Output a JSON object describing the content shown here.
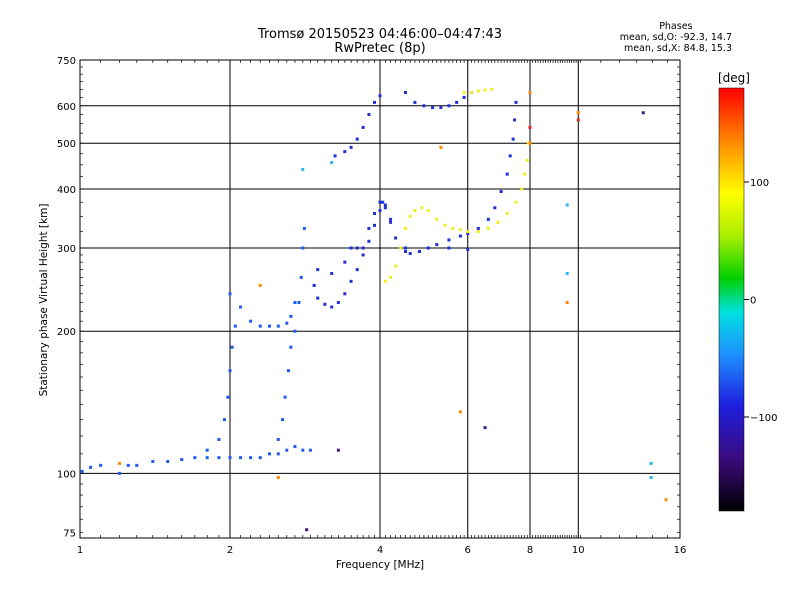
{
  "chart_data": {
    "type": "scatter",
    "title": "Tromsø 20150523 04:46:00–04:47:43",
    "subtitle": "RwPretec (8p)",
    "xlabel": "Frequency [MHz]",
    "ylabel": "Stationary phase Virtual Height [km]",
    "x_scale": "log",
    "y_scale": "log",
    "xlim": [
      1,
      16
    ],
    "ylim": [
      73,
      750
    ],
    "x_ticks": [
      1,
      2,
      4,
      6,
      8,
      10,
      16
    ],
    "y_ticks": [
      75,
      100,
      200,
      300,
      400,
      500,
      600,
      750
    ],
    "grid": true,
    "phase_stats": {
      "header": "Phases",
      "line_o": "mean, sd,O: -92.3, 14.7",
      "line_x": "mean, sd,X:  84.8, 15.3"
    },
    "colorbar": {
      "unit": "[deg]",
      "range": [
        -180,
        180
      ],
      "tick_values": [
        100,
        0,
        -100
      ],
      "tick_labels": [
        "100",
        "0",
        "−100"
      ]
    },
    "series": [
      {
        "color": "#1e5cf0",
        "points": [
          [
            1.01,
            101
          ],
          [
            1.05,
            103
          ],
          [
            1.1,
            104
          ],
          [
            1.2,
            100
          ],
          [
            1.25,
            104
          ],
          [
            1.3,
            104
          ],
          [
            1.4,
            106
          ],
          [
            1.5,
            106
          ],
          [
            1.6,
            107
          ],
          [
            1.7,
            108
          ],
          [
            1.8,
            108
          ],
          [
            1.9,
            108
          ],
          [
            2.0,
            108
          ],
          [
            2.1,
            108
          ],
          [
            2.2,
            108
          ],
          [
            2.3,
            108
          ],
          [
            2.4,
            110
          ],
          [
            2.5,
            110
          ],
          [
            2.5,
            118
          ],
          [
            2.55,
            130
          ],
          [
            2.58,
            145
          ],
          [
            2.62,
            165
          ],
          [
            2.65,
            185
          ],
          [
            2.7,
            200
          ],
          [
            2.75,
            230
          ],
          [
            2.78,
            260
          ],
          [
            2.8,
            300
          ],
          [
            2.82,
            330
          ],
          [
            2.6,
            112
          ],
          [
            2.7,
            114
          ],
          [
            2.8,
            112
          ],
          [
            2.9,
            112
          ],
          [
            1.8,
            112
          ],
          [
            1.9,
            118
          ],
          [
            1.95,
            130
          ],
          [
            1.98,
            145
          ],
          [
            2.0,
            165
          ],
          [
            2.02,
            185
          ],
          [
            2.05,
            205
          ],
          [
            2.0,
            240
          ],
          [
            2.1,
            225
          ],
          [
            2.2,
            210
          ],
          [
            2.3,
            205
          ],
          [
            2.4,
            205
          ],
          [
            2.5,
            205
          ],
          [
            2.6,
            208
          ],
          [
            2.65,
            215
          ],
          [
            2.7,
            230
          ]
        ]
      },
      {
        "color": "#1f2fd4",
        "points": [
          [
            2.95,
            250
          ],
          [
            3.0,
            235
          ],
          [
            3.1,
            228
          ],
          [
            3.2,
            225
          ],
          [
            3.3,
            230
          ],
          [
            3.4,
            240
          ],
          [
            3.5,
            255
          ],
          [
            3.6,
            270
          ],
          [
            3.7,
            290
          ],
          [
            3.8,
            310
          ],
          [
            3.9,
            335
          ],
          [
            4.0,
            360
          ],
          [
            4.05,
            375
          ],
          [
            4.1,
            370
          ],
          [
            4.2,
            345
          ],
          [
            4.3,
            315
          ],
          [
            4.4,
            300
          ],
          [
            4.5,
            295
          ],
          [
            4.6,
            292
          ],
          [
            4.8,
            295
          ],
          [
            5.0,
            300
          ],
          [
            5.2,
            305
          ],
          [
            5.5,
            312
          ],
          [
            5.8,
            318
          ],
          [
            6.0,
            322
          ],
          [
            6.3,
            330
          ],
          [
            6.6,
            345
          ],
          [
            6.8,
            365
          ],
          [
            7.0,
            395
          ],
          [
            7.2,
            430
          ],
          [
            7.3,
            470
          ],
          [
            7.4,
            510
          ],
          [
            7.45,
            560
          ],
          [
            7.5,
            610
          ],
          [
            3.0,
            270
          ],
          [
            3.2,
            265
          ],
          [
            3.4,
            280
          ],
          [
            3.6,
            300
          ],
          [
            3.8,
            330
          ],
          [
            3.9,
            355
          ],
          [
            4.0,
            375
          ],
          [
            4.1,
            365
          ],
          [
            4.2,
            340
          ],
          [
            3.5,
            300
          ],
          [
            3.7,
            300
          ],
          [
            4.5,
            300
          ],
          [
            5.0,
            300
          ],
          [
            5.5,
            300
          ],
          [
            6.0,
            298
          ],
          [
            3.25,
            470
          ],
          [
            3.4,
            480
          ],
          [
            3.5,
            490
          ],
          [
            3.6,
            510
          ],
          [
            3.7,
            540
          ],
          [
            3.8,
            575
          ],
          [
            3.9,
            610
          ],
          [
            4.0,
            630
          ],
          [
            4.5,
            640
          ],
          [
            4.7,
            610
          ],
          [
            4.9,
            600
          ],
          [
            5.1,
            595
          ],
          [
            5.3,
            595
          ],
          [
            5.5,
            600
          ],
          [
            5.7,
            610
          ],
          [
            5.9,
            625
          ],
          [
            6.1,
            640
          ]
        ]
      },
      {
        "color": "#f0f020",
        "points": [
          [
            4.1,
            255
          ],
          [
            4.2,
            260
          ],
          [
            4.3,
            275
          ],
          [
            4.4,
            300
          ],
          [
            4.5,
            330
          ],
          [
            4.6,
            350
          ],
          [
            4.7,
            360
          ],
          [
            4.85,
            365
          ],
          [
            5.0,
            360
          ],
          [
            5.2,
            345
          ],
          [
            5.4,
            335
          ],
          [
            5.6,
            330
          ],
          [
            5.8,
            328
          ],
          [
            6.0,
            325
          ],
          [
            6.3,
            325
          ],
          [
            6.6,
            330
          ],
          [
            6.9,
            340
          ],
          [
            7.2,
            355
          ],
          [
            7.5,
            375
          ],
          [
            7.7,
            400
          ],
          [
            7.8,
            430
          ],
          [
            7.9,
            460
          ],
          [
            7.95,
            500
          ],
          [
            5.9,
            640
          ],
          [
            6.1,
            640
          ],
          [
            6.3,
            645
          ],
          [
            6.5,
            648
          ],
          [
            6.7,
            650
          ]
        ]
      },
      {
        "color": "#ff8a00",
        "points": [
          [
            1.2,
            105
          ],
          [
            2.3,
            250
          ],
          [
            2.5,
            98
          ],
          [
            5.3,
            490
          ],
          [
            5.8,
            135
          ],
          [
            8.0,
            500
          ],
          [
            8.0,
            640
          ],
          [
            15.0,
            88
          ],
          [
            10.0,
            580
          ],
          [
            9.5,
            230
          ]
        ]
      },
      {
        "color": "#e8281e",
        "points": [
          [
            8.0,
            540
          ],
          [
            10.0,
            560
          ]
        ]
      },
      {
        "color": "#3a1a8a",
        "points": [
          [
            6.5,
            125
          ],
          [
            13.5,
            580
          ],
          [
            3.3,
            112
          ],
          [
            2.85,
            76
          ]
        ]
      },
      {
        "color": "#28b4f0",
        "points": [
          [
            2.8,
            440
          ],
          [
            3.2,
            455
          ],
          [
            9.5,
            370
          ],
          [
            9.5,
            265
          ],
          [
            14.0,
            105
          ],
          [
            14.0,
            98
          ]
        ]
      }
    ]
  }
}
